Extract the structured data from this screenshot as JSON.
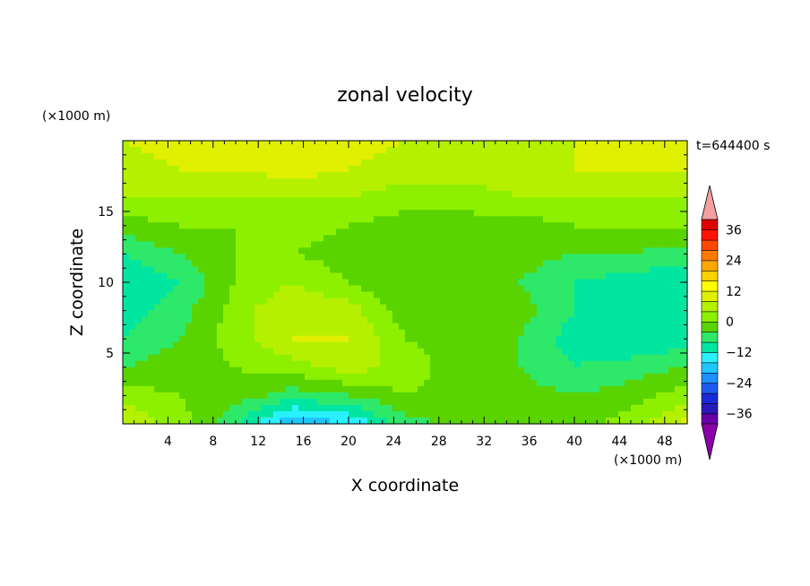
{
  "chart_data": {
    "type": "heatmap",
    "title": "zonal velocity",
    "xlabel": "X coordinate",
    "ylabel": "Z coordinate",
    "x_unit": "(×1000 m)",
    "y_unit": "(×1000 m)",
    "time_label": "t=644400 s",
    "xlim": [
      0,
      50
    ],
    "ylim": [
      0,
      20
    ],
    "x_ticks": [
      4,
      8,
      12,
      16,
      20,
      24,
      28,
      32,
      36,
      40,
      44,
      48
    ],
    "y_ticks": [
      5,
      10,
      15
    ],
    "colorbar": {
      "levels": [
        -40,
        -36,
        -32,
        -28,
        -24,
        -20,
        -16,
        -12,
        -8,
        -4,
        0,
        4,
        8,
        12,
        16,
        20,
        24,
        28,
        32,
        36,
        40
      ],
      "labels": [
        36,
        24,
        12,
        0,
        -12,
        -24,
        -36
      ],
      "colors": [
        "#6a00a8",
        "#2a1ab8",
        "#1a2ad8",
        "#1f5af0",
        "#1e90ff",
        "#1ec8ff",
        "#2af0ff",
        "#00e6a0",
        "#2ee86a",
        "#5ad400",
        "#8cf000",
        "#b4f000",
        "#e0f000",
        "#ffff00",
        "#ffd000",
        "#ffa800",
        "#ff7a00",
        "#ff4800",
        "#ff1400",
        "#e00000"
      ],
      "under_color": "#8a00a8",
      "over_color": "#f4a0a0"
    },
    "field_grid": {
      "x_centers": [
        0,
        5,
        10,
        15,
        20,
        25,
        30,
        35,
        40,
        45,
        50
      ],
      "z_centers": [
        0,
        2,
        4,
        6,
        8,
        10,
        12,
        14,
        16,
        18,
        20
      ],
      "values": [
        [
          8,
          2,
          -8,
          -20,
          -16,
          -6,
          -2,
          -2,
          -2,
          2,
          10
        ],
        [
          2,
          0,
          -2,
          -6,
          -4,
          0,
          -2,
          -2,
          -4,
          -2,
          2
        ],
        [
          -4,
          -2,
          0,
          2,
          6,
          2,
          -2,
          -4,
          -8,
          -6,
          -4
        ],
        [
          -8,
          -4,
          2,
          8,
          8,
          0,
          -2,
          -4,
          -10,
          -12,
          -10
        ],
        [
          -10,
          -6,
          2,
          8,
          6,
          -2,
          -2,
          -2,
          -8,
          -12,
          -12
        ],
        [
          -12,
          -8,
          0,
          4,
          0,
          -4,
          -2,
          -4,
          -8,
          -10,
          -12
        ],
        [
          -8,
          -4,
          0,
          0,
          -2,
          -4,
          -4,
          -2,
          -4,
          -4,
          -6
        ],
        [
          -2,
          0,
          0,
          2,
          0,
          -2,
          -2,
          -2,
          0,
          0,
          0
        ],
        [
          4,
          4,
          4,
          4,
          4,
          2,
          2,
          4,
          4,
          4,
          4
        ],
        [
          6,
          8,
          8,
          10,
          8,
          6,
          6,
          6,
          8,
          8,
          8
        ],
        [
          8,
          10,
          10,
          12,
          10,
          8,
          8,
          8,
          8,
          10,
          10
        ]
      ]
    }
  }
}
